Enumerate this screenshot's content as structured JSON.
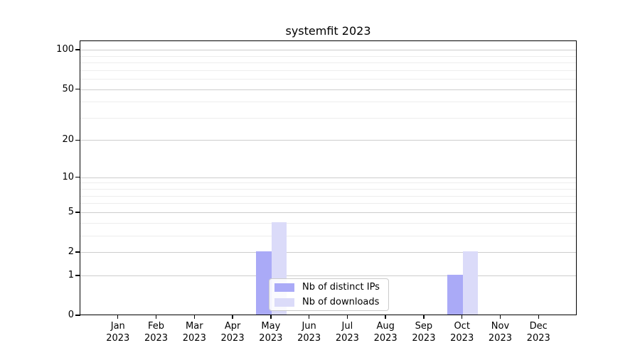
{
  "chart_data": {
    "type": "bar",
    "title": "systemfit 2023",
    "categories": [
      "Jan",
      "Feb",
      "Mar",
      "Apr",
      "May",
      "Jun",
      "Jul",
      "Aug",
      "Sep",
      "Oct",
      "Nov",
      "Dec"
    ],
    "category_year": "2023",
    "series": [
      {
        "name": "Nb of distinct IPs",
        "color": "#aaaaf7",
        "values": [
          0,
          0,
          0,
          0,
          2,
          0,
          0,
          0,
          0,
          1,
          0,
          0
        ]
      },
      {
        "name": "Nb of downloads",
        "color": "#dbdbf9",
        "values": [
          0,
          0,
          0,
          0,
          4,
          0,
          0,
          0,
          0,
          2,
          0,
          0
        ]
      }
    ],
    "yscale": "log1p",
    "ylim": [
      0,
      117
    ],
    "ytick_values": [
      0,
      1,
      2,
      5,
      10,
      20,
      50,
      100
    ],
    "ytick_labels": [
      "0",
      "1",
      "2",
      "5",
      "10",
      "20",
      "50",
      "100"
    ],
    "minor_gridline_values": [
      3,
      4,
      6,
      7,
      8,
      9,
      30,
      40,
      60,
      70,
      80,
      90
    ],
    "grid": true,
    "legend_position": "lower center",
    "colors": {
      "major_grid": "#cdcdcd",
      "minor_grid": "#ededed",
      "axis": "#000000",
      "background": "#ffffff"
    }
  }
}
